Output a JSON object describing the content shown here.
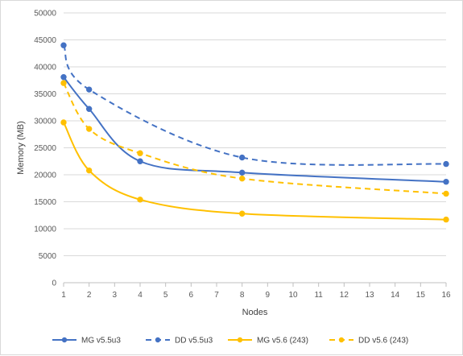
{
  "chart_data": {
    "type": "line",
    "title": "",
    "xlabel": "Nodes",
    "ylabel": "Memory (MB)",
    "xlim": [
      1,
      16
    ],
    "ylim": [
      0,
      50000
    ],
    "x_ticks": [
      "1",
      "2",
      "3",
      "4",
      "5",
      "6",
      "7",
      "8",
      "9",
      "10",
      "11",
      "12",
      "13",
      "14",
      "15",
      "16"
    ],
    "y_ticks": [
      "0",
      "5000",
      "10000",
      "15000",
      "20000",
      "25000",
      "30000",
      "35000",
      "40000",
      "45000",
      "50000"
    ],
    "grid": true,
    "legend_position": "bottom",
    "series": [
      {
        "name": "MG v5.5u3",
        "color": "#4472C4",
        "dash": "solid",
        "x": [
          1,
          2,
          4,
          8,
          16
        ],
        "y": [
          38100,
          32200,
          22500,
          20400,
          18700
        ]
      },
      {
        "name": "DD v5.5u3",
        "color": "#4472C4",
        "dash": "dashed",
        "x": [
          1,
          2,
          8,
          16
        ],
        "y": [
          44000,
          35800,
          23200,
          22000
        ]
      },
      {
        "name": "MG v5.6 (243)",
        "color": "#FFC000",
        "dash": "solid",
        "x": [
          1,
          2,
          4,
          8,
          16
        ],
        "y": [
          29700,
          20800,
          15400,
          12800,
          11700
        ]
      },
      {
        "name": "DD v5.6 (243)",
        "color": "#FFC000",
        "dash": "dashed",
        "x": [
          1,
          2,
          4,
          8,
          16
        ],
        "y": [
          37000,
          28500,
          24000,
          19300,
          16500
        ]
      }
    ]
  }
}
